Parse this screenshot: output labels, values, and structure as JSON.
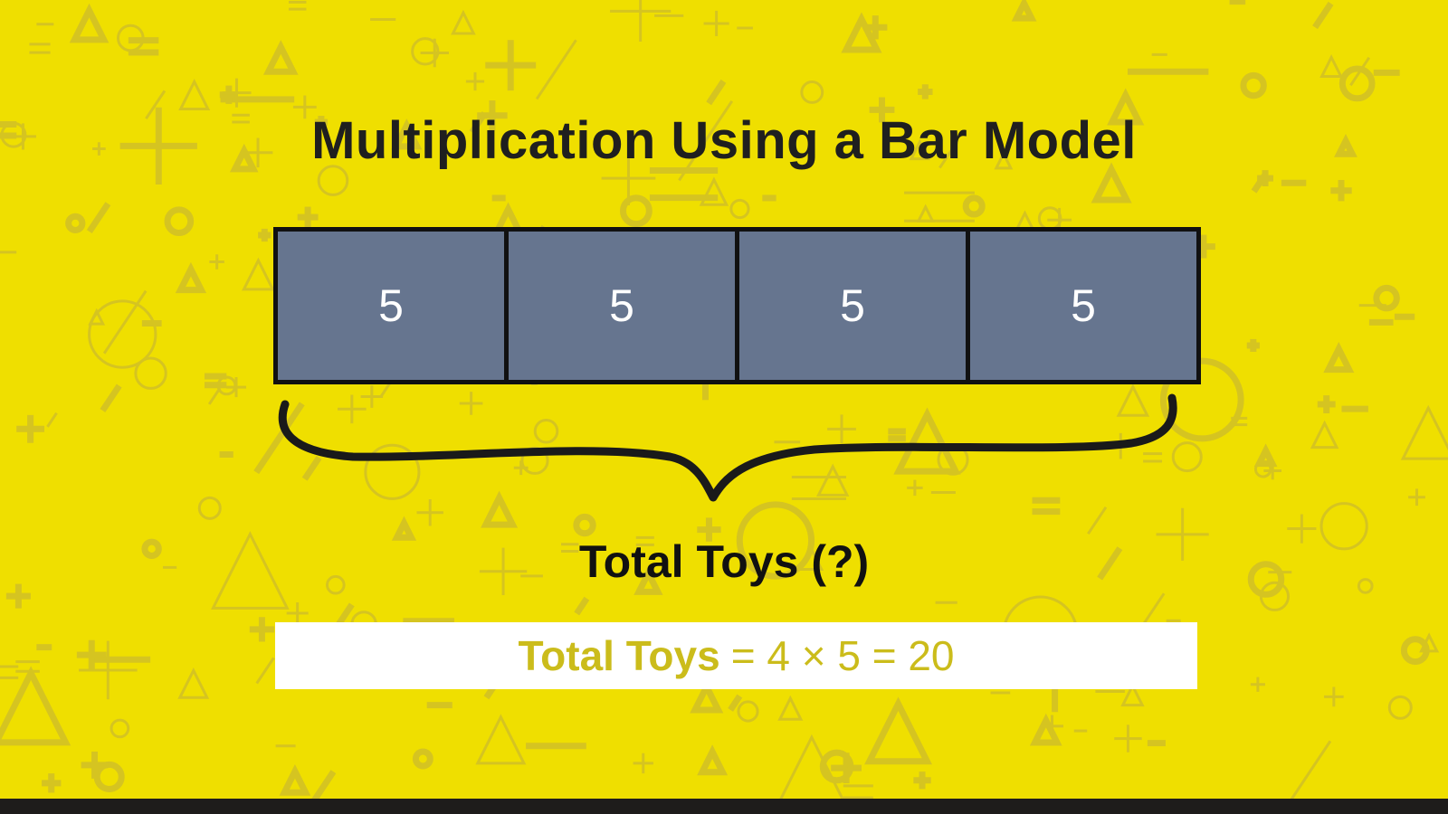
{
  "slide": {
    "title": "Multiplication Using a Bar Model",
    "bar_cells": [
      "5",
      "5",
      "5",
      "5"
    ],
    "brace_label": "Total Toys (?)",
    "answer": {
      "lhs": "Total Toys",
      "rhs": "= 4 × 5 = 20"
    }
  },
  "colors": {
    "background": "#efdf00",
    "pattern": "#d5c421",
    "bar_fill": "#66758f",
    "answer_text": "#cbbc1b"
  }
}
